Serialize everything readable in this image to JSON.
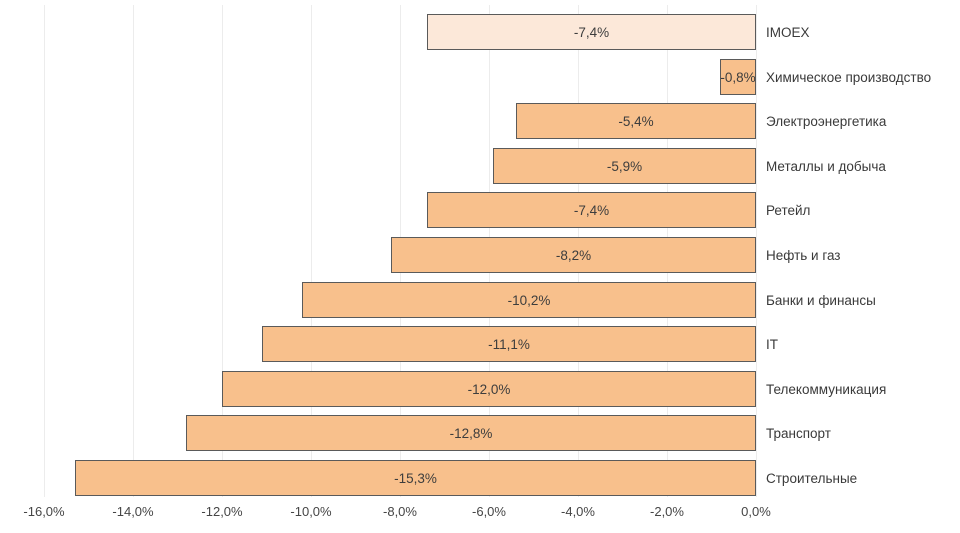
{
  "chart_data": {
    "type": "bar",
    "orientation": "horizontal",
    "title": "",
    "xlabel": "",
    "ylabel": "",
    "grid": true,
    "legend": "none",
    "xlim": [
      -16,
      0
    ],
    "tick_values": [
      -16,
      -14,
      -12,
      -10,
      -8,
      -6,
      -4,
      -2,
      0
    ],
    "tick_labels": [
      "-16,0%",
      "-14,0%",
      "-12,0%",
      "-10,0%",
      "-8,0%",
      "-6,0%",
      "-4,0%",
      "-2,0%",
      "0,0%"
    ],
    "categories": [
      "IMOEX",
      "Химическое производство",
      "Электроэнергетика",
      "Металлы и добыча",
      "Ретейл",
      "Нефть и газ",
      "Банки и финансы",
      "IT",
      "Телекоммуникация",
      "Транспорт",
      "Строительные"
    ],
    "values": [
      -7.4,
      -0.8,
      -5.4,
      -5.9,
      -7.4,
      -8.2,
      -10.2,
      -11.1,
      -12.0,
      -12.8,
      -15.3
    ],
    "value_labels": [
      "-7,4%",
      "-0,8%",
      "-5,4%",
      "-5,9%",
      "-7,4%",
      "-8,2%",
      "-10,2%",
      "-11,1%",
      "-12,0%",
      "-12,8%",
      "-15,3%"
    ],
    "highlight_index": 0,
    "colors": {
      "bar_fill": "#F8C08C",
      "highlight_fill": "#FCE8D9",
      "bar_border": "#5A5A5A",
      "gridline": "#ECECEC",
      "text": "#3A3A3A",
      "background": "#FFFFFF"
    }
  }
}
